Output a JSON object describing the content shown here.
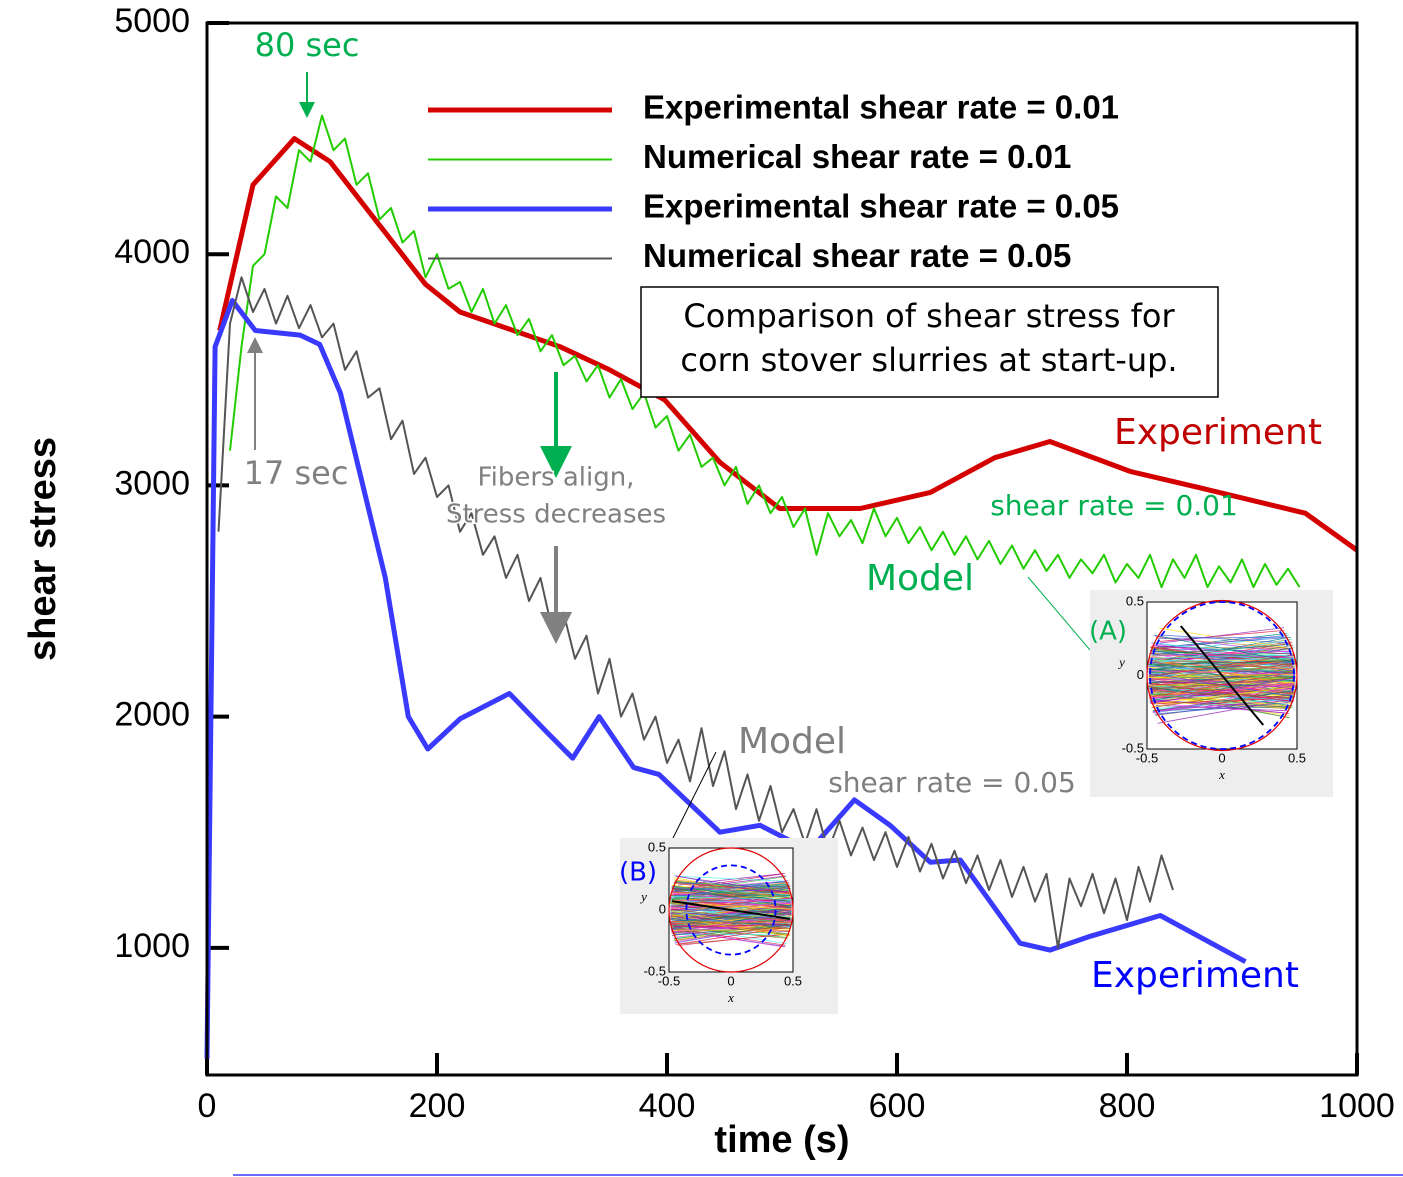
{
  "chart_data": {
    "type": "line",
    "xlabel": "time (s)",
    "ylabel": "shear stress",
    "xlim": [
      0,
      1000
    ],
    "ylim": [
      450,
      5000
    ],
    "xticks": [
      0,
      200,
      400,
      600,
      800,
      1000
    ],
    "yticks": [
      1000,
      2000,
      3000,
      4000,
      5000
    ],
    "series": [
      {
        "name": "Experimental shear rate = 0.01",
        "color": "#d40000",
        "x": [
          11,
          40,
          76,
          107,
          190,
          220,
          307,
          350,
          398,
          446,
          498,
          568,
          629,
          685,
          733,
          803,
          863,
          955,
          1000
        ],
        "values": [
          3670,
          4300,
          4500,
          4400,
          3870,
          3750,
          3600,
          3500,
          3370,
          3100,
          2900,
          2900,
          2970,
          3120,
          3190,
          3060,
          2990,
          2880,
          2720
        ]
      },
      {
        "name": "Numerical shear rate = 0.01",
        "color": "#22cc00",
        "x": [
          20,
          30,
          40,
          50,
          60,
          70,
          80,
          90,
          100,
          110,
          120,
          130,
          140,
          150,
          160,
          170,
          180,
          190,
          200,
          210,
          220,
          230,
          240,
          250,
          260,
          270,
          280,
          290,
          300,
          310,
          320,
          330,
          340,
          350,
          360,
          370,
          380,
          390,
          400,
          410,
          420,
          430,
          440,
          450,
          460,
          470,
          480,
          490,
          500,
          510,
          520,
          530,
          540,
          550,
          560,
          570,
          580,
          590,
          600,
          610,
          620,
          630,
          640,
          650,
          660,
          670,
          680,
          690,
          700,
          710,
          720,
          730,
          740,
          750,
          760,
          770,
          780,
          790,
          800,
          810,
          820,
          830,
          840,
          850,
          860,
          870,
          880,
          890,
          900,
          910,
          920,
          930,
          940,
          950
        ],
        "values": [
          3150,
          3600,
          3950,
          4000,
          4250,
          4200,
          4450,
          4400,
          4600,
          4450,
          4500,
          4300,
          4350,
          4150,
          4200,
          4050,
          4100,
          3900,
          4000,
          3850,
          3880,
          3750,
          3850,
          3700,
          3780,
          3650,
          3720,
          3580,
          3650,
          3520,
          3560,
          3450,
          3520,
          3380,
          3460,
          3330,
          3400,
          3250,
          3300,
          3150,
          3220,
          3080,
          3120,
          3000,
          3080,
          2920,
          3000,
          2880,
          2950,
          2820,
          2900,
          2700,
          2880,
          2780,
          2850,
          2750,
          2900,
          2780,
          2860,
          2750,
          2820,
          2720,
          2800,
          2700,
          2780,
          2680,
          2760,
          2660,
          2740,
          2640,
          2720,
          2630,
          2700,
          2600,
          2680,
          2620,
          2700,
          2580,
          2660,
          2600,
          2700,
          2560,
          2680,
          2600,
          2700,
          2560,
          2650,
          2580,
          2680,
          2560,
          2660,
          2570,
          2640,
          2560
        ]
      },
      {
        "name": "Experimental shear rate = 0.05",
        "color": "#3a3aff",
        "x": [
          0,
          7,
          22,
          42,
          81,
          98,
          116,
          155,
          175,
          192,
          220,
          263,
          296,
          318,
          341,
          371,
          393,
          446,
          481,
          524,
          563,
          594,
          629,
          655,
          707,
          733,
          768,
          829,
          903
        ],
        "values": [
          520,
          3600,
          3800,
          3670,
          3650,
          3610,
          3400,
          2600,
          2000,
          1860,
          1990,
          2100,
          1930,
          1820,
          2000,
          1780,
          1750,
          1500,
          1530,
          1420,
          1640,
          1530,
          1370,
          1380,
          1020,
          990,
          1050,
          1140,
          940
        ]
      },
      {
        "name": "Numerical shear rate = 0.05",
        "color": "#555555",
        "x": [
          10,
          20,
          30,
          40,
          50,
          60,
          70,
          80,
          90,
          100,
          110,
          120,
          130,
          140,
          150,
          160,
          170,
          180,
          190,
          200,
          210,
          220,
          230,
          240,
          250,
          260,
          270,
          280,
          290,
          300,
          310,
          320,
          330,
          340,
          350,
          360,
          370,
          380,
          390,
          400,
          410,
          420,
          430,
          440,
          450,
          460,
          470,
          480,
          490,
          500,
          510,
          520,
          530,
          540,
          550,
          560,
          570,
          580,
          590,
          600,
          610,
          620,
          630,
          640,
          650,
          660,
          670,
          680,
          690,
          700,
          710,
          720,
          730,
          740,
          750,
          760,
          770,
          780,
          790,
          800,
          810,
          820,
          830,
          840
        ],
        "values": [
          2800,
          3700,
          3900,
          3750,
          3850,
          3700,
          3820,
          3680,
          3780,
          3640,
          3700,
          3500,
          3580,
          3380,
          3420,
          3200,
          3280,
          3050,
          3120,
          2950,
          3000,
          2800,
          2880,
          2700,
          2780,
          2600,
          2700,
          2500,
          2600,
          2380,
          2450,
          2250,
          2350,
          2100,
          2250,
          2000,
          2100,
          1900,
          2000,
          1800,
          1900,
          1720,
          1950,
          1700,
          1850,
          1600,
          1750,
          1550,
          1700,
          1500,
          1600,
          1450,
          1600,
          1420,
          1550,
          1400,
          1520,
          1380,
          1500,
          1350,
          1480,
          1330,
          1450,
          1300,
          1420,
          1280,
          1400,
          1250,
          1380,
          1220,
          1350,
          1200,
          1320,
          1000,
          1300,
          1180,
          1320,
          1150,
          1300,
          1120,
          1350,
          1200,
          1400,
          1250
        ]
      }
    ],
    "annotations": [
      "80 sec",
      "17 sec",
      "Fibers align,",
      "Stress decreases",
      "Comparison of shear stress for",
      "corn stover slurries at start-up.",
      "Experiment",
      "shear rate = 0.01",
      "Model",
      "Model",
      "shear rate = 0.05",
      "Experiment"
    ],
    "insets": [
      {
        "label": "(A)",
        "yticks": [
          "0.5",
          "0",
          "-0.5"
        ],
        "xticks": [
          "-0.5",
          "0",
          "0.5"
        ],
        "xlabel": "x",
        "ylabel": "y"
      },
      {
        "label": "(B)",
        "yticks": [
          "0.5",
          "0",
          "-0.5"
        ],
        "xticks": [
          "-0.5",
          "0",
          "0.5"
        ],
        "xlabel": "x",
        "ylabel": "y"
      }
    ]
  }
}
